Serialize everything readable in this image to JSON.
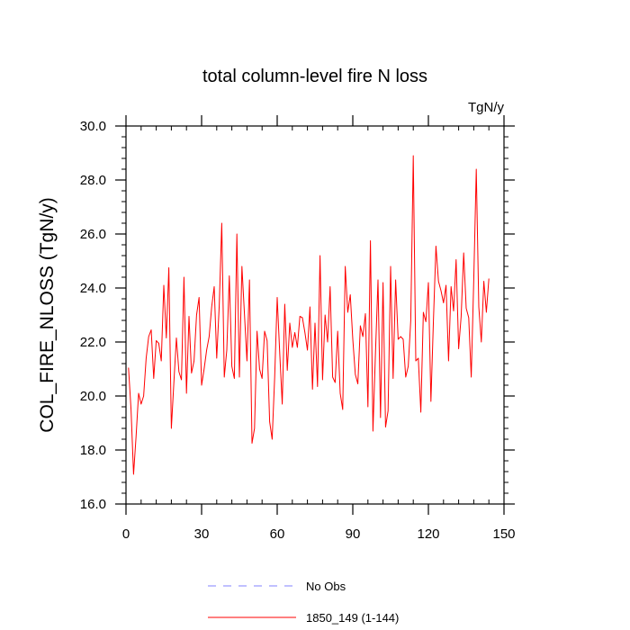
{
  "chart_data": {
    "type": "line",
    "title": "total column-level fire N loss",
    "units": "TgN/y",
    "xlabel": "",
    "ylabel": "COL_FIRE_NLOSS  (TgN/y)",
    "xlim": [
      0,
      150
    ],
    "ylim": [
      16,
      30
    ],
    "x_ticks": [
      0,
      30,
      60,
      90,
      120,
      150
    ],
    "y_ticks": [
      16,
      18,
      20,
      22,
      24,
      26,
      28,
      30
    ],
    "x_tick_labels": [
      "0",
      "30",
      "60",
      "90",
      "120",
      "150"
    ],
    "y_tick_labels": [
      "16.0",
      "18.0",
      "20.0",
      "22.0",
      "24.0",
      "26.0",
      "28.0",
      "30.0"
    ],
    "grid": false,
    "legend": {
      "placement": "bottom",
      "entries": [
        {
          "label": "No Obs",
          "color": "#8080ff",
          "style": "dashed"
        },
        {
          "label": "1850_149 (1-144)",
          "color": "#ff0000",
          "style": "solid"
        }
      ]
    },
    "series": [
      {
        "name": "1850_149 (1-144)",
        "color": "#ff0000",
        "x_start": 1,
        "x_step": 1,
        "values": [
          21.05,
          19.5,
          17.1,
          18.5,
          20.1,
          19.7,
          20.0,
          21.4,
          22.2,
          22.45,
          20.65,
          22.05,
          21.95,
          21.3,
          24.1,
          22.15,
          24.75,
          18.8,
          20.5,
          22.15,
          20.9,
          20.6,
          24.4,
          20.1,
          22.95,
          20.85,
          21.3,
          23.0,
          23.65,
          20.4,
          21.0,
          21.7,
          22.2,
          23.3,
          24.05,
          21.4,
          23.35,
          26.4,
          20.7,
          21.7,
          24.45,
          21.1,
          20.65,
          26.0,
          20.7,
          24.8,
          23.05,
          21.3,
          24.3,
          18.25,
          18.8,
          22.4,
          21.0,
          20.65,
          22.4,
          22.05,
          19.05,
          18.4,
          20.7,
          23.65,
          21.6,
          19.7,
          23.4,
          20.95,
          22.7,
          21.8,
          22.35,
          21.8,
          22.95,
          22.9,
          22.35,
          21.7,
          23.3,
          20.25,
          22.7,
          20.35,
          25.2,
          20.6,
          23.0,
          22.0,
          24.05,
          20.7,
          20.5,
          22.4,
          20.1,
          19.5,
          24.8,
          23.1,
          23.75,
          22.1,
          20.8,
          20.45,
          22.6,
          22.2,
          23.05,
          19.6,
          25.75,
          18.7,
          21.6,
          24.3,
          19.2,
          24.2,
          18.85,
          19.45,
          24.8,
          20.65,
          24.3,
          22.1,
          22.2,
          22.1,
          20.7,
          21.1,
          22.8,
          28.9,
          21.3,
          21.4,
          19.4,
          23.1,
          22.75,
          24.2,
          19.8,
          22.8,
          25.55,
          24.25,
          23.9,
          23.45,
          24.1,
          21.3,
          24.05,
          23.15,
          25.05,
          21.75,
          22.95,
          25.3,
          23.25,
          22.9,
          20.7,
          24.3,
          28.4,
          23.3,
          22.0,
          24.25,
          23.1,
          24.35
        ]
      }
    ]
  }
}
